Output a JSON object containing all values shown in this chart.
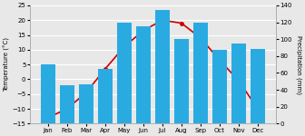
{
  "months": [
    "Jan",
    "Feb",
    "Mar",
    "Apr",
    "May",
    "Jun",
    "Jul",
    "Aug",
    "Sep",
    "Oct",
    "Nov",
    "Dec"
  ],
  "temperature": [
    -13,
    -10,
    -4.5,
    3.5,
    11,
    16.5,
    20,
    19,
    14,
    6.5,
    -0.5,
    -10
  ],
  "precip_mm": [
    70,
    45,
    47,
    65,
    120,
    115,
    135,
    100,
    120,
    87,
    95,
    88
  ],
  "bar_color": "#29ABE2",
  "line_color": "#CC0000",
  "temp_ylim": [
    -15,
    25
  ],
  "temp_yticks": [
    -15,
    -10,
    -5,
    0,
    5,
    10,
    15,
    20,
    25
  ],
  "precip_ylim": [
    0,
    140
  ],
  "precip_yticks": [
    0,
    20,
    40,
    60,
    80,
    100,
    120,
    140
  ],
  "ylabel_left": "Temperature (°C)",
  "ylabel_right": "Precipitation (mm)",
  "background_color": "#e8e8e8",
  "grid_color": "#ffffff"
}
